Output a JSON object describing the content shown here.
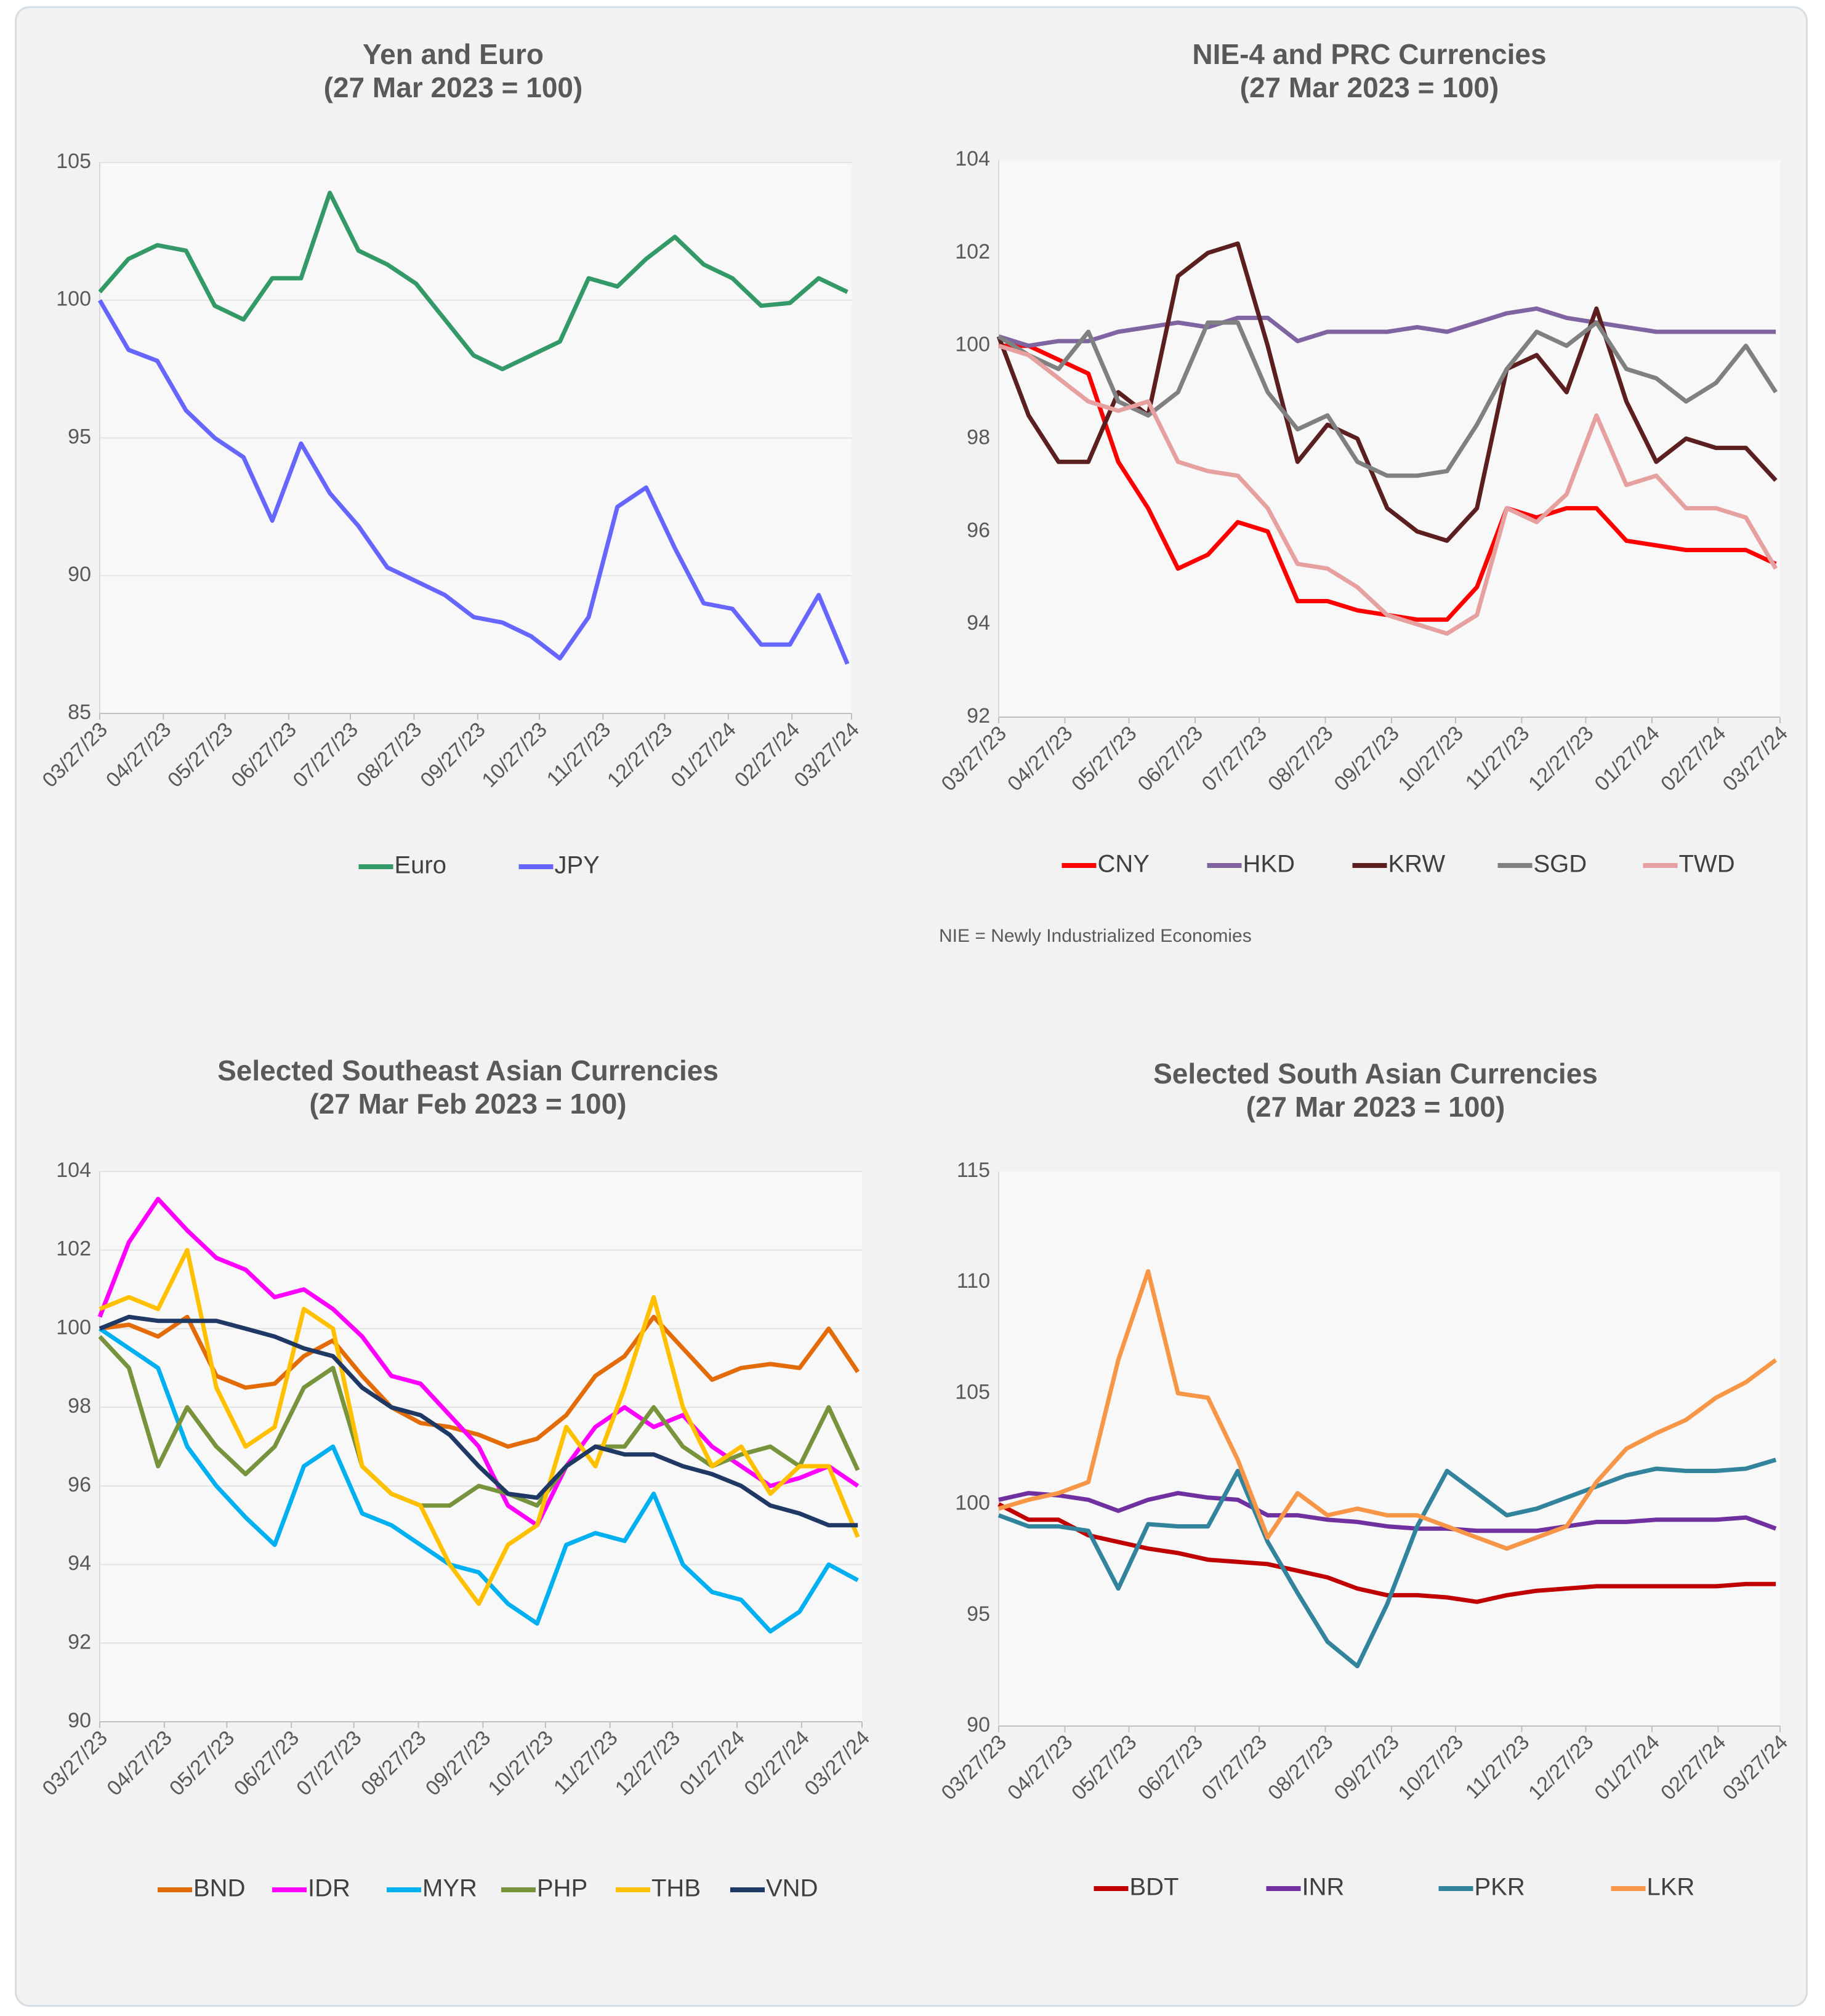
{
  "chart_data": [
    {
      "type": "line",
      "title": "Yen and Euro",
      "subtitle": "(27 Mar 2023 = 100)",
      "x": [
        "03/27/23",
        "04/10/23",
        "04/24/23",
        "05/08/23",
        "05/22/23",
        "06/05/23",
        "06/19/23",
        "07/03/23",
        "07/17/23",
        "07/31/23",
        "08/14/23",
        "08/28/23",
        "09/11/23",
        "09/25/23",
        "10/09/23",
        "10/23/23",
        "11/06/23",
        "11/20/23",
        "12/04/23",
        "12/18/23",
        "01/01/24",
        "01/15/24",
        "01/29/24",
        "02/12/24",
        "02/26/24",
        "03/11/24",
        "03/25/24"
      ],
      "xlim": [
        "03/27/23",
        "03/27/24"
      ],
      "xticks": [
        "03/27/23",
        "04/27/23",
        "05/27/23",
        "06/27/23",
        "07/27/23",
        "08/27/23",
        "09/27/23",
        "10/27/23",
        "11/27/23",
        "12/27/23",
        "01/27/24",
        "02/27/24",
        "03/27/24"
      ],
      "ylim": [
        85,
        105
      ],
      "yticks": [
        85,
        90,
        95,
        100,
        105
      ],
      "grid": true,
      "series": [
        {
          "name": "Euro",
          "color": "#339966",
          "values": [
            100.3,
            101.5,
            102,
            101.8,
            99.8,
            99.3,
            100.8,
            100.8,
            103.9,
            101.8,
            101.3,
            100.6,
            99.3,
            98,
            97.5,
            98,
            98.5,
            100.8,
            100.5,
            101.5,
            102.3,
            101.3,
            100.8,
            99.8,
            99.9,
            100.8,
            100.3
          ]
        },
        {
          "name": "JPY",
          "color": "#6666ff",
          "values": [
            100,
            98.2,
            97.8,
            96,
            95,
            94.3,
            92,
            94.8,
            93,
            91.8,
            90.3,
            89.8,
            89.3,
            88.5,
            88.3,
            87.8,
            87,
            88.5,
            92.5,
            93.2,
            91,
            89,
            88.8,
            87.5,
            87.5,
            89.3,
            86.8
          ]
        }
      ]
    },
    {
      "type": "line",
      "title": "NIE-4 and PRC Currencies",
      "subtitle": "(27 Mar 2023 = 100)",
      "note": "NIE = Newly Industrialized Economies",
      "x": [
        "03/27/23",
        "04/10/23",
        "04/24/23",
        "05/08/23",
        "05/22/23",
        "06/05/23",
        "06/19/23",
        "07/03/23",
        "07/17/23",
        "07/31/23",
        "08/14/23",
        "08/28/23",
        "09/11/23",
        "09/25/23",
        "10/09/23",
        "10/23/23",
        "11/06/23",
        "11/20/23",
        "12/04/23",
        "12/18/23",
        "01/01/24",
        "01/15/24",
        "01/29/24",
        "02/12/24",
        "02/26/24",
        "03/11/24",
        "03/25/24"
      ],
      "xlim": [
        "03/27/23",
        "03/27/24"
      ],
      "xticks": [
        "03/27/23",
        "04/27/23",
        "05/27/23",
        "06/27/23",
        "07/27/23",
        "08/27/23",
        "09/27/23",
        "10/27/23",
        "11/27/23",
        "12/27/23",
        "01/27/24",
        "02/27/24",
        "03/27/24"
      ],
      "ylim": [
        92,
        104
      ],
      "yticks": [
        92,
        94,
        96,
        98,
        100,
        102,
        104
      ],
      "grid": false,
      "series": [
        {
          "name": "CNY",
          "color": "#ff0000",
          "values": [
            100,
            100,
            99.7,
            99.4,
            97.5,
            96.5,
            95.2,
            95.5,
            96.2,
            96,
            94.5,
            94.5,
            94.3,
            94.2,
            94.1,
            94.1,
            94.8,
            96.5,
            96.3,
            96.5,
            96.5,
            95.8,
            95.7,
            95.6,
            95.6,
            95.6,
            95.3
          ]
        },
        {
          "name": "HKD",
          "color": "#8064a2",
          "values": [
            100.2,
            100,
            100.1,
            100.1,
            100.3,
            100.4,
            100.5,
            100.4,
            100.6,
            100.6,
            100.1,
            100.3,
            100.3,
            100.3,
            100.4,
            100.3,
            100.5,
            100.7,
            100.8,
            100.6,
            100.5,
            100.4,
            100.3,
            100.3,
            100.3,
            100.3,
            100.3
          ]
        },
        {
          "name": "KRW",
          "color": "#5c1f1f",
          "values": [
            100.2,
            98.5,
            97.5,
            97.5,
            99,
            98.5,
            101.5,
            102,
            102.2,
            100,
            97.5,
            98.3,
            98,
            96.5,
            96,
            95.8,
            96.5,
            99.5,
            99.8,
            99,
            100.8,
            98.8,
            97.5,
            98,
            97.8,
            97.8,
            97.1
          ]
        },
        {
          "name": "SGD",
          "color": "#808080",
          "values": [
            100.2,
            99.8,
            99.5,
            100.3,
            98.8,
            98.5,
            99,
            100.5,
            100.5,
            99,
            98.2,
            98.5,
            97.5,
            97.2,
            97.2,
            97.3,
            98.3,
            99.5,
            100.3,
            100,
            100.5,
            99.5,
            99.3,
            98.8,
            99.2,
            100,
            99
          ]
        },
        {
          "name": "TWD",
          "color": "#e6a0a0",
          "values": [
            100,
            99.8,
            99.3,
            98.8,
            98.6,
            98.8,
            97.5,
            97.3,
            97.2,
            96.5,
            95.3,
            95.2,
            94.8,
            94.2,
            94,
            93.8,
            94.2,
            96.5,
            96.2,
            96.8,
            98.5,
            97,
            97.2,
            96.5,
            96.5,
            96.3,
            95.2
          ]
        }
      ]
    },
    {
      "type": "line",
      "title": "Selected Southeast Asian Currencies",
      "subtitle": "(27 Mar Feb 2023 = 100)",
      "x": [
        "03/27/23",
        "04/10/23",
        "04/24/23",
        "05/08/23",
        "05/22/23",
        "06/05/23",
        "06/19/23",
        "07/03/23",
        "07/17/23",
        "07/31/23",
        "08/14/23",
        "08/28/23",
        "09/11/23",
        "09/25/23",
        "10/09/23",
        "10/23/23",
        "11/06/23",
        "11/20/23",
        "12/04/23",
        "12/18/23",
        "01/01/24",
        "01/15/24",
        "01/29/24",
        "02/12/24",
        "02/26/24",
        "03/11/24",
        "03/25/24"
      ],
      "xlim": [
        "03/27/23",
        "03/27/24"
      ],
      "xticks": [
        "03/27/23",
        "04/27/23",
        "05/27/23",
        "06/27/23",
        "07/27/23",
        "08/27/23",
        "09/27/23",
        "10/27/23",
        "11/27/23",
        "12/27/23",
        "01/27/24",
        "02/27/24",
        "03/27/24"
      ],
      "ylim": [
        90,
        104
      ],
      "yticks": [
        90,
        92,
        94,
        96,
        98,
        100,
        102,
        104
      ],
      "grid": true,
      "series": [
        {
          "name": "BND",
          "color": "#e36c09",
          "values": [
            100,
            100.1,
            99.8,
            100.3,
            98.8,
            98.5,
            98.6,
            99.3,
            99.7,
            98.8,
            98,
            97.6,
            97.5,
            97.3,
            97,
            97.2,
            97.8,
            98.8,
            99.3,
            100.3,
            99.5,
            98.7,
            99,
            99.1,
            99,
            100,
            98.9
          ]
        },
        {
          "name": "IDR",
          "color": "#ff00ff",
          "values": [
            100.3,
            102.2,
            103.3,
            102.5,
            101.8,
            101.5,
            100.8,
            101,
            100.5,
            99.8,
            98.8,
            98.6,
            97.8,
            97,
            95.5,
            95,
            96.5,
            97.5,
            98,
            97.5,
            97.8,
            97,
            96.5,
            96,
            96.2,
            96.5,
            96
          ]
        },
        {
          "name": "MYR",
          "color": "#00b0f0",
          "values": [
            100,
            99.5,
            99,
            97,
            96,
            95.2,
            94.5,
            96.5,
            97,
            95.3,
            95,
            94.5,
            94,
            93.8,
            93,
            92.5,
            94.5,
            94.8,
            94.6,
            95.8,
            94,
            93.3,
            93.1,
            92.3,
            92.8,
            94,
            93.6
          ]
        },
        {
          "name": "PHP",
          "color": "#77933c",
          "values": [
            99.8,
            99,
            96.5,
            98,
            97,
            96.3,
            97,
            98.5,
            99,
            96.5,
            95.8,
            95.5,
            95.5,
            96,
            95.8,
            95.5,
            96.5,
            97,
            97,
            98,
            97,
            96.5,
            96.8,
            97,
            96.5,
            98,
            96.4
          ]
        },
        {
          "name": "THB",
          "color": "#ffc000",
          "values": [
            100.5,
            100.8,
            100.5,
            102,
            98.5,
            97,
            97.5,
            100.5,
            100,
            96.5,
            95.8,
            95.5,
            94,
            93,
            94.5,
            95,
            97.5,
            96.5,
            98.5,
            100.8,
            98,
            96.5,
            97,
            95.8,
            96.5,
            96.5,
            94.7
          ]
        },
        {
          "name": "VND",
          "color": "#1f3864",
          "values": [
            100,
            100.3,
            100.2,
            100.2,
            100.2,
            100,
            99.8,
            99.5,
            99.3,
            98.5,
            98,
            97.8,
            97.3,
            96.5,
            95.8,
            95.7,
            96.5,
            97,
            96.8,
            96.8,
            96.5,
            96.3,
            96,
            95.5,
            95.3,
            95,
            95
          ]
        }
      ]
    },
    {
      "type": "line",
      "title": "Selected South Asian Currencies",
      "subtitle": "(27 Mar 2023 = 100)",
      "x": [
        "03/27/23",
        "04/10/23",
        "04/24/23",
        "05/08/23",
        "05/22/23",
        "06/05/23",
        "06/19/23",
        "07/03/23",
        "07/17/23",
        "07/31/23",
        "08/14/23",
        "08/28/23",
        "09/11/23",
        "09/25/23",
        "10/09/23",
        "10/23/23",
        "11/06/23",
        "11/20/23",
        "12/04/23",
        "12/18/23",
        "01/01/24",
        "01/15/24",
        "01/29/24",
        "02/12/24",
        "02/26/24",
        "03/11/24",
        "03/25/24"
      ],
      "xlim": [
        "03/27/23",
        "03/27/24"
      ],
      "xticks": [
        "03/27/23",
        "04/27/23",
        "05/27/23",
        "06/27/23",
        "07/27/23",
        "08/27/23",
        "09/27/23",
        "10/27/23",
        "11/27/23",
        "12/27/23",
        "01/27/24",
        "02/27/24",
        "03/27/24"
      ],
      "ylim": [
        90,
        115
      ],
      "yticks": [
        90,
        95,
        100,
        105,
        110,
        115
      ],
      "grid": false,
      "series": [
        {
          "name": "BDT",
          "color": "#c00000",
          "values": [
            100,
            99.3,
            99.3,
            98.6,
            98.3,
            98,
            97.8,
            97.5,
            97.4,
            97.3,
            97,
            96.7,
            96.2,
            95.9,
            95.9,
            95.8,
            95.6,
            95.9,
            96.1,
            96.2,
            96.3,
            96.3,
            96.3,
            96.3,
            96.3,
            96.4,
            96.4
          ]
        },
        {
          "name": "INR",
          "color": "#7030a0",
          "values": [
            100.2,
            100.5,
            100.4,
            100.2,
            99.7,
            100.2,
            100.5,
            100.3,
            100.2,
            99.5,
            99.5,
            99.3,
            99.2,
            99,
            98.9,
            98.9,
            98.8,
            98.8,
            98.8,
            99,
            99.2,
            99.2,
            99.3,
            99.3,
            99.3,
            99.4,
            98.9
          ]
        },
        {
          "name": "PKR",
          "color": "#31849b",
          "values": [
            99.5,
            99,
            99,
            98.8,
            96.2,
            99.1,
            99,
            99,
            101.5,
            98.3,
            96,
            93.8,
            92.7,
            95.5,
            99,
            101.5,
            100.5,
            99.5,
            99.8,
            100.3,
            100.8,
            101.3,
            101.6,
            101.5,
            101.5,
            101.6,
            102
          ]
        },
        {
          "name": "LKR",
          "color": "#f79646",
          "values": [
            99.8,
            100.2,
            100.5,
            101,
            106.5,
            110.5,
            105,
            104.8,
            102,
            98.5,
            100.5,
            99.5,
            99.8,
            99.5,
            99.5,
            99,
            98.5,
            98,
            98.5,
            99,
            101,
            102.5,
            103.2,
            103.8,
            104.8,
            105.5,
            106.5
          ]
        }
      ]
    }
  ]
}
